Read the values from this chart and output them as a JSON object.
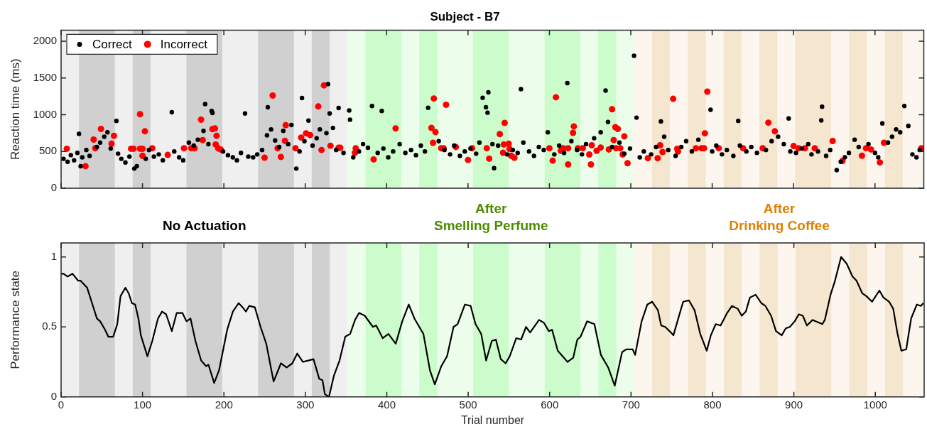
{
  "chart_data": [
    {
      "type": "scatter",
      "title": "Subject - B7",
      "ylabel": "Reaction time (ms)",
      "xlim": [
        0,
        1060
      ],
      "xticks": [
        0,
        100,
        200,
        300,
        400,
        500,
        600,
        700,
        800,
        900,
        1000
      ],
      "ylim": [
        0,
        2150
      ],
      "yticks": [
        0,
        500,
        1000,
        1500,
        2000
      ],
      "tick_labels": "y",
      "legend": "top left",
      "grid": false,
      "marker": "circle",
      "bands": [
        {
          "axis": "x",
          "from": 0,
          "to": 352,
          "color": "#efefef"
        },
        {
          "axis": "x",
          "from": 352,
          "to": 704,
          "color": "#ecfdec"
        },
        {
          "axis": "x",
          "from": 704,
          "to": 1060,
          "color": "#fcf6ef"
        },
        {
          "axis": "x",
          "from": 22,
          "to": 66,
          "color": "#d0d0d0"
        },
        {
          "axis": "x",
          "from": 88,
          "to": 110,
          "color": "#d0d0d0"
        },
        {
          "axis": "x",
          "from": 154,
          "to": 198,
          "color": "#d0d0d0"
        },
        {
          "axis": "x",
          "from": 242,
          "to": 286,
          "color": "#d0d0d0"
        },
        {
          "axis": "x",
          "from": 308,
          "to": 330,
          "color": "#d0d0d0"
        },
        {
          "axis": "x",
          "from": 374,
          "to": 418,
          "color": "#ccfccc"
        },
        {
          "axis": "x",
          "from": 440,
          "to": 462,
          "color": "#ccfccc"
        },
        {
          "axis": "x",
          "from": 506,
          "to": 550,
          "color": "#ccfccc"
        },
        {
          "axis": "x",
          "from": 594,
          "to": 638,
          "color": "#ccfccc"
        },
        {
          "axis": "x",
          "from": 660,
          "to": 682,
          "color": "#ccfccc"
        },
        {
          "axis": "x",
          "from": 726,
          "to": 748,
          "color": "#f5e6cf"
        },
        {
          "axis": "x",
          "from": 770,
          "to": 792,
          "color": "#f5e6cf"
        },
        {
          "axis": "x",
          "from": 814,
          "to": 836,
          "color": "#f5e6cf"
        },
        {
          "axis": "x",
          "from": 858,
          "to": 880,
          "color": "#f5e6cf"
        },
        {
          "axis": "x",
          "from": 902,
          "to": 946,
          "color": "#f5e6cf"
        },
        {
          "axis": "x",
          "from": 968,
          "to": 990,
          "color": "#f5e6cf"
        },
        {
          "axis": "x",
          "from": 1012,
          "to": 1034,
          "color": "#f5e6cf"
        }
      ],
      "series": [
        {
          "name": "Correct",
          "color": "#000000",
          "x": [
            3,
            8,
            12,
            16,
            20,
            22,
            24,
            26,
            31,
            35,
            44,
            48,
            53,
            57,
            61,
            68,
            70,
            74,
            79,
            84,
            90,
            93,
            104,
            108,
            114,
            120,
            125,
            136,
            139,
            145,
            150,
            157,
            163,
            168,
            175,
            177,
            181,
            185,
            186,
            199,
            205,
            211,
            216,
            221,
            226,
            230,
            236,
            241,
            247,
            253,
            254,
            258,
            263,
            268,
            273,
            279,
            283,
            289,
            293,
            296,
            299,
            304,
            309,
            314,
            318,
            326,
            328,
            330,
            334,
            338,
            341,
            347,
            354,
            355,
            359,
            366,
            371,
            377,
            382,
            389,
            394,
            396,
            402,
            408,
            416,
            423,
            430,
            436,
            442,
            447,
            451,
            464,
            471,
            478,
            483,
            490,
            496,
            503,
            510,
            514,
            518,
            522,
            524,
            525,
            530,
            532,
            537,
            548,
            555,
            561,
            565,
            568,
            575,
            581,
            587,
            593,
            598,
            606,
            612,
            618,
            622,
            627,
            634,
            640,
            645,
            655,
            663,
            669,
            672,
            677,
            686,
            692,
            699,
            704,
            707,
            711,
            716,
            725,
            731,
            737,
            741,
            746,
            755,
            762,
            768,
            775,
            783,
            798,
            800,
            805,
            812,
            818,
            826,
            832,
            834,
            842,
            848,
            855,
            866,
            873,
            881,
            888,
            894,
            896,
            903,
            910,
            918,
            922,
            930,
            934,
            935,
            940,
            945,
            953,
            958,
            963,
            968,
            975,
            980,
            992,
            1000,
            1004,
            1009,
            1016,
            1021,
            1026,
            1031,
            1036,
            1041,
            1046,
            1051,
            1055
          ],
          "values": [
            400,
            360,
            450,
            380,
            480,
            740,
            300,
            420,
            520,
            440,
            560,
            620,
            700,
            760,
            540,
            916,
            470,
            400,
            350,
            430,
            267,
            300,
            400,
            520,
            430,
            460,
            380,
            1034,
            500,
            420,
            380,
            620,
            580,
            660,
            780,
            1145,
            600,
            1050,
            1024,
            500,
            450,
            420,
            380,
            480,
            1017,
            430,
            420,
            460,
            520,
            720,
            1101,
            800,
            650,
            560,
            780,
            600,
            860,
            267,
            500,
            1227,
            640,
            920,
            580,
            680,
            800,
            750,
            1416,
            1017,
            820,
            520,
            1091,
            480,
            1058,
            932,
            420,
            500,
            600,
            550,
            1118,
            480,
            1051,
            540,
            420,
            500,
            600,
            480,
            520,
            450,
            580,
            500,
            1095,
            640,
            520,
            460,
            580,
            440,
            500,
            540,
            470,
            620,
            1230,
            1101,
            1027,
            1304,
            600,
            273,
            580,
            460,
            520,
            480,
            1348,
            620,
            500,
            440,
            560,
            520,
            760,
            460,
            580,
            480,
            1429,
            640,
            520,
            460,
            600,
            680,
            760,
            1328,
            900,
            560,
            620,
            470,
            540,
            1801,
            960,
            420,
            500,
            460,
            560,
            909,
            700,
            520,
            440,
            560,
            640,
            500,
            660,
            1068,
            500,
            580,
            460,
            520,
            440,
            916,
            580,
            500,
            560,
            480,
            520,
            640,
            700,
            600,
            949,
            500,
            480,
            540,
            600,
            460,
            500,
            922,
            1108,
            440,
            520,
            246,
            360,
            420,
            480,
            660,
            560,
            600,
            480,
            420,
            882,
            620,
            700,
            800,
            760,
            1118,
            848,
            460,
            420,
            520
          ]
        },
        {
          "name": "Incorrect",
          "color": "#ff0000",
          "x": [
            7,
            30,
            40,
            42,
            49,
            62,
            65,
            86,
            89,
            97,
            97,
            100,
            100,
            103,
            112,
            131,
            151,
            160,
            164,
            172,
            174,
            186,
            189,
            191,
            190,
            193,
            196,
            250,
            260,
            266,
            270,
            275,
            276,
            288,
            295,
            301,
            306,
            316,
            320,
            323,
            331,
            341,
            343,
            361,
            362,
            384,
            411,
            455,
            458,
            460,
            457,
            467,
            470,
            473,
            485,
            500,
            505,
            523,
            526,
            539,
            545,
            544,
            550,
            543,
            551,
            553,
            557,
            600,
            604,
            608,
            614,
            617,
            623,
            623,
            629,
            630,
            635,
            641,
            649,
            651,
            652,
            658,
            663,
            673,
            677,
            679,
            681,
            684,
            682,
            687,
            690,
            692,
            696,
            721,
            733,
            736,
            739,
            752,
            757,
            758,
            780,
            787,
            790,
            791,
            794,
            808,
            838,
            862,
            869,
            877,
            900,
            906,
            914,
            926,
            948,
            960,
            984,
            989,
            995,
            1006,
            1011,
            1057
          ],
          "values": [
            537,
            300,
            662,
            544,
            807,
            605,
            713,
            537,
            537,
            1007,
            537,
            537,
            442,
            774,
            544,
            453,
            544,
            544,
            544,
            932,
            655,
            804,
            814,
            713,
            595,
            544,
            527,
            415,
            1260,
            544,
            426,
            645,
            858,
            544,
            689,
            747,
            723,
            1112,
            520,
            1399,
            578,
            551,
            551,
            483,
            544,
            392,
            814,
            821,
            1220,
            764,
            618,
            544,
            544,
            1135,
            561,
            385,
            544,
            544,
            402,
            737,
            889,
            595,
            605,
            483,
            534,
            442,
            415,
            544,
            375,
            1237,
            510,
            544,
            544,
            324,
            753,
            841,
            544,
            544,
            459,
            324,
            584,
            510,
            554,
            527,
            1074,
            655,
            831,
            807,
            544,
            544,
            459,
            706,
            341,
            409,
            409,
            584,
            493,
            1216,
            537,
            500,
            544,
            544,
            544,
            747,
            1314,
            544,
            544,
            544,
            892,
            774,
            574,
            544,
            544,
            544,
            642,
            371,
            442,
            544,
            527,
            351,
            618,
            544
          ]
        }
      ]
    },
    {
      "type": "line",
      "ylabel": "Performance state",
      "xlabel": "Trial number",
      "xlim": [
        0,
        1060
      ],
      "xticks": [
        0,
        100,
        200,
        300,
        400,
        500,
        600,
        700,
        800,
        900,
        1000
      ],
      "ylim": [
        0,
        1.1
      ],
      "yticks": [
        0,
        0.5,
        1
      ],
      "grid": false,
      "marker": "none",
      "bands": [
        {
          "axis": "x",
          "from": 0,
          "to": 352,
          "color": "#efefef",
          "label": "No Actuation"
        },
        {
          "axis": "x",
          "from": 352,
          "to": 704,
          "color": "#ecfdec",
          "label": "After\nSmelling Perfume"
        },
        {
          "axis": "x",
          "from": 704,
          "to": 1060,
          "color": "#fcf6ef",
          "label": "After\nDrinking Coffee"
        },
        {
          "axis": "x",
          "from": 22,
          "to": 66,
          "color": "#d0d0d0"
        },
        {
          "axis": "x",
          "from": 88,
          "to": 110,
          "color": "#d0d0d0"
        },
        {
          "axis": "x",
          "from": 154,
          "to": 198,
          "color": "#d0d0d0"
        },
        {
          "axis": "x",
          "from": 242,
          "to": 286,
          "color": "#d0d0d0"
        },
        {
          "axis": "x",
          "from": 308,
          "to": 330,
          "color": "#d0d0d0"
        },
        {
          "axis": "x",
          "from": 374,
          "to": 418,
          "color": "#ccfccc"
        },
        {
          "axis": "x",
          "from": 440,
          "to": 462,
          "color": "#ccfccc"
        },
        {
          "axis": "x",
          "from": 506,
          "to": 550,
          "color": "#ccfccc"
        },
        {
          "axis": "x",
          "from": 594,
          "to": 638,
          "color": "#ccfccc"
        },
        {
          "axis": "x",
          "from": 660,
          "to": 682,
          "color": "#ccfccc"
        },
        {
          "axis": "x",
          "from": 726,
          "to": 748,
          "color": "#f5e6cf"
        },
        {
          "axis": "x",
          "from": 770,
          "to": 792,
          "color": "#f5e6cf"
        },
        {
          "axis": "x",
          "from": 814,
          "to": 836,
          "color": "#f5e6cf"
        },
        {
          "axis": "x",
          "from": 858,
          "to": 880,
          "color": "#f5e6cf"
        },
        {
          "axis": "x",
          "from": 902,
          "to": 946,
          "color": "#f5e6cf"
        },
        {
          "axis": "x",
          "from": 968,
          "to": 990,
          "color": "#f5e6cf"
        },
        {
          "axis": "x",
          "from": 1012,
          "to": 1034,
          "color": "#f5e6cf"
        }
      ],
      "series": [
        {
          "color": "#000000",
          "x": [
            0,
            3,
            8,
            14,
            21,
            24,
            32,
            38,
            44,
            48,
            54,
            58,
            64,
            69,
            73,
            79,
            83,
            87,
            91,
            95,
            98,
            106,
            112,
            119,
            124,
            129,
            136,
            142,
            149,
            154,
            159,
            165,
            172,
            178,
            181,
            188,
            194,
            204,
            211,
            218,
            223,
            227,
            231,
            238,
            245,
            252,
            261,
            270,
            277,
            284,
            290,
            297,
            310,
            317,
            321,
            324,
            329,
            335,
            342,
            349,
            355,
            361,
            366,
            373,
            383,
            387,
            395,
            402,
            411,
            419,
            427,
            434,
            445,
            453,
            459,
            467,
            474,
            482,
            487,
            496,
            503,
            509,
            516,
            522,
            529,
            534,
            540,
            546,
            551,
            559,
            565,
            571,
            576,
            587,
            593,
            599,
            603,
            610,
            622,
            629,
            634,
            638,
            646,
            655,
            663,
            672,
            680,
            689,
            694,
            702,
            705,
            713,
            720,
            726,
            733,
            737,
            742,
            749,
            752,
            757,
            764,
            771,
            778,
            785,
            793,
            798,
            804,
            810,
            818,
            824,
            831,
            836,
            841,
            846,
            853,
            860,
            865,
            872,
            878,
            885,
            890,
            895,
            901,
            906,
            911,
            916,
            923,
            935,
            938,
            945,
            950,
            958,
            965,
            972,
            977,
            984,
            989,
            996,
            1005,
            1010,
            1017,
            1022,
            1027,
            1032,
            1038,
            1044,
            1051,
            1056,
            1059
          ],
          "values": [
            0.88,
            0.88,
            0.86,
            0.88,
            0.83,
            0.83,
            0.78,
            0.67,
            0.56,
            0.54,
            0.48,
            0.43,
            0.43,
            0.52,
            0.72,
            0.78,
            0.74,
            0.67,
            0.66,
            0.56,
            0.44,
            0.29,
            0.4,
            0.56,
            0.61,
            0.59,
            0.47,
            0.6,
            0.6,
            0.54,
            0.56,
            0.4,
            0.26,
            0.22,
            0.23,
            0.1,
            0.19,
            0.48,
            0.61,
            0.67,
            0.64,
            0.61,
            0.65,
            0.64,
            0.5,
            0.38,
            0.11,
            0.24,
            0.21,
            0.24,
            0.31,
            0.25,
            0.27,
            0.13,
            0.12,
            0.02,
            0,
            0.15,
            0.26,
            0.43,
            0.45,
            0.55,
            0.6,
            0.58,
            0.5,
            0.51,
            0.42,
            0.45,
            0.38,
            0.54,
            0.66,
            0.56,
            0.45,
            0.19,
            0.09,
            0.22,
            0.29,
            0.5,
            0.52,
            0.66,
            0.65,
            0.52,
            0.45,
            0.26,
            0.4,
            0.41,
            0.27,
            0.24,
            0.29,
            0.42,
            0.41,
            0.5,
            0.46,
            0.55,
            0.53,
            0.47,
            0.48,
            0.33,
            0.25,
            0.28,
            0.41,
            0.43,
            0.54,
            0.52,
            0.3,
            0.21,
            0.08,
            0.32,
            0.34,
            0.34,
            0.3,
            0.54,
            0.66,
            0.68,
            0.62,
            0.51,
            0.5,
            0.46,
            0.44,
            0.54,
            0.68,
            0.69,
            0.62,
            0.45,
            0.33,
            0.44,
            0.52,
            0.51,
            0.6,
            0.65,
            0.63,
            0.58,
            0.61,
            0.71,
            0.73,
            0.67,
            0.65,
            0.58,
            0.47,
            0.44,
            0.49,
            0.5,
            0.54,
            0.59,
            0.58,
            0.51,
            0.55,
            0.52,
            0.55,
            0.73,
            0.82,
            1,
            0.95,
            0.86,
            0.83,
            0.74,
            0.72,
            0.68,
            0.76,
            0.71,
            0.68,
            0.63,
            0.46,
            0.33,
            0.34,
            0.56,
            0.66,
            0.65,
            0.67
          ]
        }
      ]
    }
  ]
}
